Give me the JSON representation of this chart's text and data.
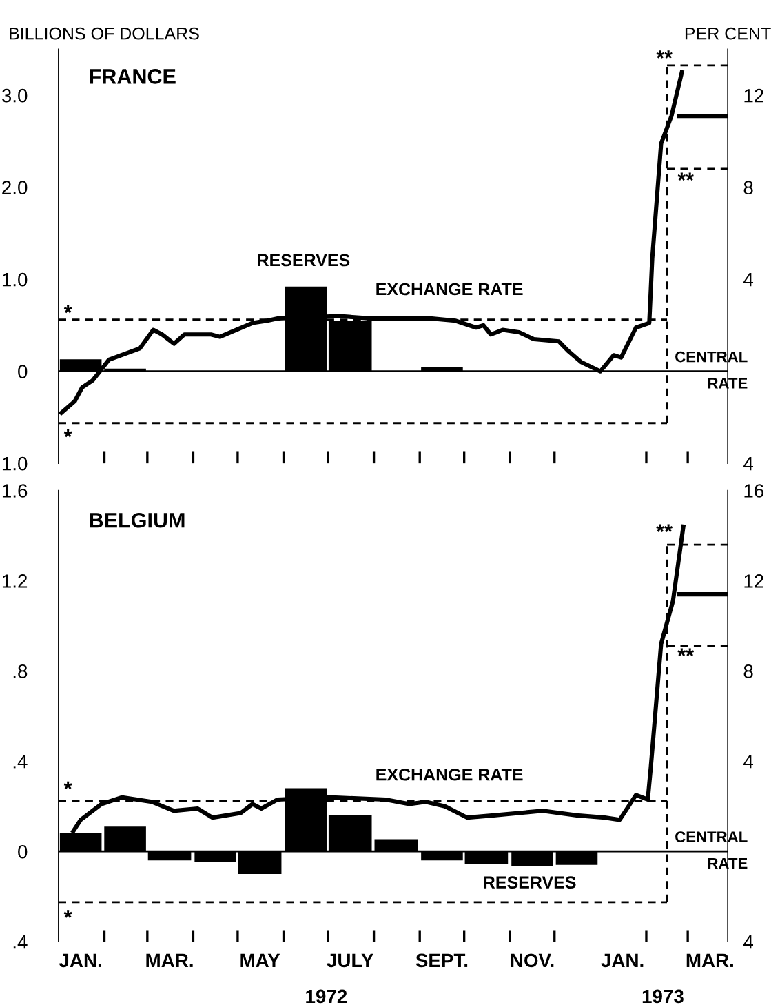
{
  "chart_data": [
    {
      "type": "bar",
      "title": "FRANCE",
      "ylabel": "BILLIONS OF DOLLARS",
      "y2label": "PER CENT",
      "xlim": [
        "1972-01-01",
        "1973-03-28"
      ],
      "xticks": [
        {
          "value": "1972-02-01",
          "label": null
        },
        {
          "value": "1972-03-01",
          "label": null
        },
        {
          "value": "1972-04-01",
          "label": null
        },
        {
          "value": "1972-05-01",
          "label": null
        },
        {
          "value": "1972-06-01",
          "label": null
        },
        {
          "value": "1972-07-01",
          "label": null
        },
        {
          "value": "1972-08-01",
          "label": null
        },
        {
          "value": "1972-09-01",
          "label": null
        },
        {
          "value": "1972-10-01",
          "label": null
        },
        {
          "value": "1972-11-01",
          "label": null
        },
        {
          "value": "1972-12-01",
          "label": null
        },
        {
          "value": "1973-02-01",
          "label": null
        },
        {
          "value": "1973-03-01",
          "label": null
        }
      ],
      "ylim": [
        -1.0,
        3.5
      ],
      "yticks": [
        {
          "value": -1.0,
          "label": "1.0"
        },
        0,
        {
          "value": 1.0,
          "label": "1.0"
        },
        {
          "value": 2.0,
          "label": "2.0"
        },
        {
          "value": 3.0,
          "label": "3.0"
        }
      ],
      "y2lim": [
        -4,
        14
      ],
      "y2ticks": [
        {
          "value": -4,
          "label": "4"
        },
        4,
        8,
        12
      ],
      "tick_labels": "y",
      "series": [
        {
          "name": "RESERVES",
          "color": "#000000",
          "x": [
            "1972-01-16",
            "1972-02-15",
            "1972-03-16",
            "1972-04-16",
            "1972-05-16",
            "1972-06-16",
            "1972-07-16",
            "1972-08-16",
            "1972-09-16",
            "1972-10-16",
            "1972-11-16",
            "1972-12-16"
          ],
          "values": [
            0.13,
            0.03,
            -0.01,
            -0.01,
            0.0,
            0.92,
            0.55,
            0.0,
            0.05,
            0.0,
            0.0,
            0.0
          ]
        },
        {
          "name": "EXCHANGE RATE",
          "type": "line",
          "axis": "y2",
          "color": "#000000",
          "line_style": "solid",
          "x": [
            "1972-01-03",
            "1972-01-12",
            "1972-01-17",
            "1972-01-24",
            "1972-01-29",
            "1972-02-04",
            "1972-02-25",
            "1972-03-05",
            "1972-03-11",
            "1972-03-19",
            "1972-03-26",
            "1972-04-13",
            "1972-04-19",
            "1972-04-30",
            "1972-05-11",
            "1972-05-21",
            "1972-05-28",
            "1972-07-09",
            "1972-07-29",
            "1972-09-08",
            "1972-09-25",
            "1972-10-09",
            "1972-10-14",
            "1972-10-19",
            "1972-10-27",
            "1972-11-07",
            "1972-11-17",
            "1972-12-04",
            "1972-12-10",
            "1972-12-19",
            "1973-01-01",
            "1973-01-10",
            "1973-01-15",
            "1973-01-25",
            "1973-02-03",
            "1973-02-05",
            "1973-02-11",
            "1973-02-18",
            "1973-02-25"
          ],
          "values": [
            -1.8,
            -1.3,
            -0.7,
            -0.4,
            0.0,
            0.5,
            1.0,
            1.8,
            1.6,
            1.2,
            1.6,
            1.6,
            1.5,
            1.8,
            2.1,
            2.2,
            2.3,
            2.4,
            2.3,
            2.3,
            2.2,
            1.9,
            2.0,
            1.6,
            1.8,
            1.7,
            1.4,
            1.3,
            0.9,
            0.4,
            0.0,
            0.7,
            0.6,
            1.9,
            2.1,
            4.9,
            9.9,
            11.1,
            13.0
          ]
        },
        {
          "name": "*",
          "type": "line",
          "axis": "y2",
          "color": "#000000",
          "line_style": "dashed",
          "x": [
            "1972-01-01",
            "1973-02-15"
          ],
          "values": [
            2.25,
            2.25
          ]
        },
        {
          "name": "*",
          "type": "line",
          "axis": "y2",
          "color": "#000000",
          "line_style": "dashed",
          "x": [
            "1972-01-01",
            "1973-02-15"
          ],
          "values": [
            -2.25,
            -2.25
          ]
        },
        {
          "type": "line",
          "axis": "y2",
          "color": "#000000",
          "line_style": "dashed",
          "x": [
            "1973-02-15",
            "1973-02-15"
          ],
          "values": [
            -2.25,
            13.3
          ]
        },
        {
          "name": "**",
          "type": "line",
          "axis": "y2",
          "color": "#000000",
          "line_style": "dashed",
          "x": [
            "1973-02-15",
            "1973-03-28"
          ],
          "values": [
            13.3,
            13.3
          ]
        },
        {
          "name": "**",
          "type": "line",
          "axis": "y2",
          "color": "#000000",
          "line_style": "dashed",
          "x": [
            "1973-02-15",
            "1973-03-28"
          ],
          "values": [
            8.8,
            8.8
          ]
        },
        {
          "type": "line",
          "axis": "y2",
          "color": "#000000",
          "line_style": "solid",
          "x": [
            "1973-02-23",
            "1973-03-28"
          ],
          "values": [
            11.1,
            11.1
          ]
        }
      ],
      "ref_lines": [
        {
          "axis": "y",
          "value": 0,
          "label": "CENTRAL RATE",
          "color": "#000000"
        }
      ]
    },
    {
      "type": "bar",
      "title": "BELGIUM",
      "xlim": [
        "1972-01-01",
        "1973-03-28"
      ],
      "xticks": [
        {
          "value": "1972-01-16",
          "label": "JAN."
        },
        {
          "value": "1972-02-01",
          "label": null
        },
        {
          "value": "1972-03-01",
          "label": null
        },
        {
          "value": "1972-03-16",
          "label": "MAR."
        },
        {
          "value": "1972-04-01",
          "label": null
        },
        {
          "value": "1972-05-01",
          "label": null
        },
        {
          "value": "1972-05-16",
          "label": "MAY"
        },
        {
          "value": "1972-06-01",
          "label": null
        },
        {
          "value": "1972-07-01",
          "label": null
        },
        {
          "value": "1972-07-16",
          "label": "JULY"
        },
        {
          "value": "1972-08-01",
          "label": null
        },
        {
          "value": "1972-09-01",
          "label": null
        },
        {
          "value": "1972-09-16",
          "label": "SEPT."
        },
        {
          "value": "1972-10-01",
          "label": null
        },
        {
          "value": "1972-11-01",
          "label": null
        },
        {
          "value": "1972-11-16",
          "label": "NOV."
        },
        {
          "value": "1972-12-01",
          "label": null
        },
        {
          "value": "1973-01-16",
          "label": "JAN."
        },
        {
          "value": "1973-02-01",
          "label": null
        },
        {
          "value": "1973-03-01",
          "label": null
        },
        {
          "value": "1973-03-16",
          "label": "MAR."
        }
      ],
      "ylim": [
        -0.4,
        1.6
      ],
      "yticks": [
        {
          "value": -0.4,
          "label": ".4"
        },
        0,
        {
          "value": 0.4,
          "label": ".4"
        },
        {
          "value": 0.8,
          "label": ".8"
        },
        1.2,
        1.6
      ],
      "y2lim": [
        -4,
        16
      ],
      "y2ticks": [
        {
          "value": -4,
          "label": "4"
        },
        4,
        8,
        12,
        16
      ],
      "series": [
        {
          "name": "RESERVES",
          "color": "#000000",
          "x": [
            "1972-01-16",
            "1972-02-15",
            "1972-03-16",
            "1972-04-16",
            "1972-05-16",
            "1972-06-16",
            "1972-07-16",
            "1972-08-16",
            "1972-09-16",
            "1972-10-16",
            "1972-11-16",
            "1972-12-16"
          ],
          "values": [
            0.08,
            0.11,
            -0.04,
            -0.045,
            -0.1,
            0.28,
            0.16,
            0.054,
            -0.04,
            -0.054,
            -0.065,
            -0.06
          ]
        },
        {
          "name": "EXCHANGE RATE",
          "type": "line",
          "axis": "y2",
          "color": "#000000",
          "line_style": "solid",
          "x": [
            "1972-01-11",
            "1972-01-16",
            "1972-01-30",
            "1972-02-13",
            "1972-03-04",
            "1972-03-19",
            "1972-04-04",
            "1972-04-14",
            "1972-05-03",
            "1972-05-11",
            "1972-05-17",
            "1972-05-28",
            "1972-07-01",
            "1972-08-09",
            "1972-08-25",
            "1972-09-05",
            "1972-09-18",
            "1972-10-03",
            "1972-10-21",
            "1972-11-23",
            "1972-12-16",
            "1973-01-04",
            "1973-01-14",
            "1973-01-25",
            "1973-02-02",
            "1973-02-04",
            "1973-02-11",
            "1973-02-19",
            "1973-02-26"
          ],
          "values": [
            0.9,
            1.4,
            2.1,
            2.4,
            2.2,
            1.8,
            1.9,
            1.5,
            1.7,
            2.1,
            1.9,
            2.3,
            2.4,
            2.3,
            2.1,
            2.2,
            2.0,
            1.5,
            1.6,
            1.8,
            1.6,
            1.5,
            1.4,
            2.5,
            2.3,
            3.7,
            9.2,
            11.1,
            14.4
          ]
        },
        {
          "name": "*",
          "type": "line",
          "axis": "y2",
          "color": "#000000",
          "line_style": "dashed",
          "x": [
            "1972-01-01",
            "1973-02-15"
          ],
          "values": [
            2.25,
            2.25
          ]
        },
        {
          "name": "*",
          "type": "line",
          "axis": "y2",
          "color": "#000000",
          "line_style": "dashed",
          "x": [
            "1972-01-01",
            "1973-02-15"
          ],
          "values": [
            -2.25,
            -2.25
          ]
        },
        {
          "type": "line",
          "axis": "y2",
          "color": "#000000",
          "line_style": "dashed",
          "x": [
            "1973-02-15",
            "1973-02-15"
          ],
          "values": [
            -2.25,
            13.6
          ]
        },
        {
          "name": "**",
          "type": "line",
          "axis": "y2",
          "color": "#000000",
          "line_style": "dashed",
          "x": [
            "1973-02-15",
            "1973-03-28"
          ],
          "values": [
            13.6,
            13.6
          ]
        },
        {
          "name": "**",
          "type": "line",
          "axis": "y2",
          "color": "#000000",
          "line_style": "dashed",
          "x": [
            "1973-02-15",
            "1973-03-28"
          ],
          "values": [
            9.1,
            9.1
          ]
        },
        {
          "type": "line",
          "axis": "y2",
          "color": "#000000",
          "line_style": "solid",
          "x": [
            "1973-02-23",
            "1973-03-28"
          ],
          "values": [
            11.4,
            11.4
          ]
        }
      ],
      "ref_lines": [
        {
          "axis": "y",
          "value": 0,
          "label": "CENTRAL RATE",
          "color": "#000000"
        }
      ],
      "annotations": [
        "1972",
        "1973"
      ]
    }
  ]
}
